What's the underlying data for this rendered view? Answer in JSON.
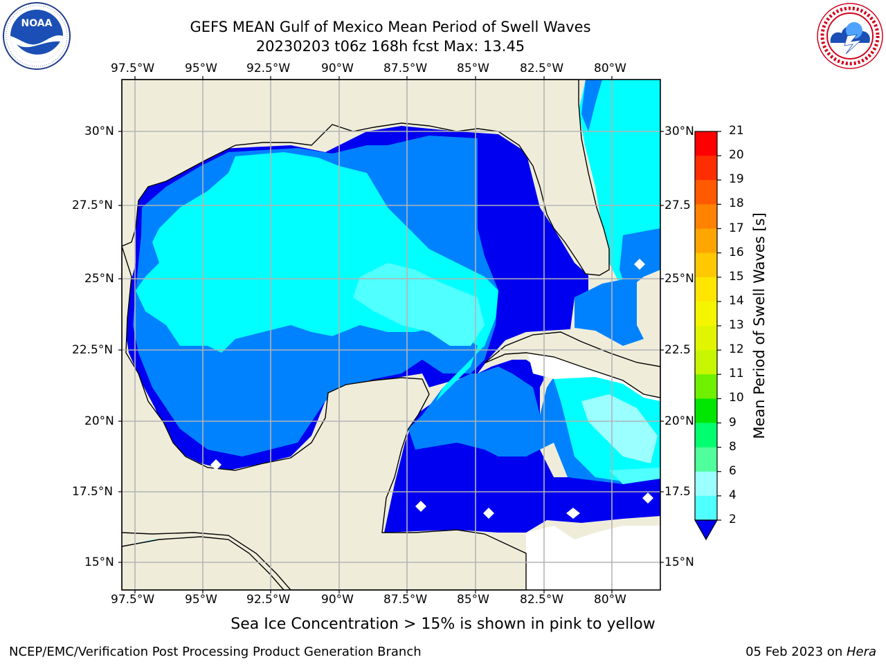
{
  "header": {
    "title_line1": "GEFS MEAN Gulf of Mexico Mean Period of Swell Waves",
    "title_line2": "20230203 t06z 168h fcst   Max: 13.45"
  },
  "logos": {
    "left": {
      "name": "NOAA",
      "ring_text": "NATIONAL OCEANIC AND ATMOSPHERIC ADMINISTRATION · U.S. DEPARTMENT OF COMMERCE"
    },
    "right": {
      "ring_text": "NATIONAL WEATHER SERVICE"
    }
  },
  "map": {
    "lon_labels": [
      "97.5°W",
      "95°W",
      "92.5°W",
      "90°W",
      "87.5°W",
      "85°W",
      "82.5°W",
      "80°W"
    ],
    "lat_labels_left": [
      "30°N",
      "27.5°N",
      "25°N",
      "22.5°N",
      "20°N",
      "17.5°N",
      "15°N"
    ],
    "lat_labels_right": [
      "30°N",
      "27.5",
      "25°N",
      "22.5",
      "20°N",
      "17.5",
      "15°N"
    ],
    "land_color": "#efedda",
    "grid_color": "#b4b4b4"
  },
  "colorbar": {
    "label": "Mean Period of Swell Waves [s]",
    "ticks": [
      "21",
      "20",
      "19",
      "18",
      "17",
      "16",
      "15",
      "14",
      "13",
      "12",
      "11",
      "10",
      "9",
      "8",
      "6",
      "4",
      "2"
    ],
    "colors": [
      "#ff0000",
      "#ff2e00",
      "#ff5a00",
      "#ff8200",
      "#ffa500",
      "#ffc800",
      "#ffe600",
      "#f5f500",
      "#e1f500",
      "#c8f500",
      "#6ef000",
      "#00e600",
      "#00ff6e",
      "#50ff9b",
      "#9bffff",
      "#50ffff",
      "#00ffff",
      "#0082ff",
      "#0000f0"
    ]
  },
  "footer": {
    "note": "Sea Ice Concentration > 15% is shown in pink to yellow",
    "credit": "NCEP/EMC/Verification Post Processing Product Generation Branch",
    "date_prefix": "05 Feb 2023 on ",
    "date_machine": "Hera"
  }
}
